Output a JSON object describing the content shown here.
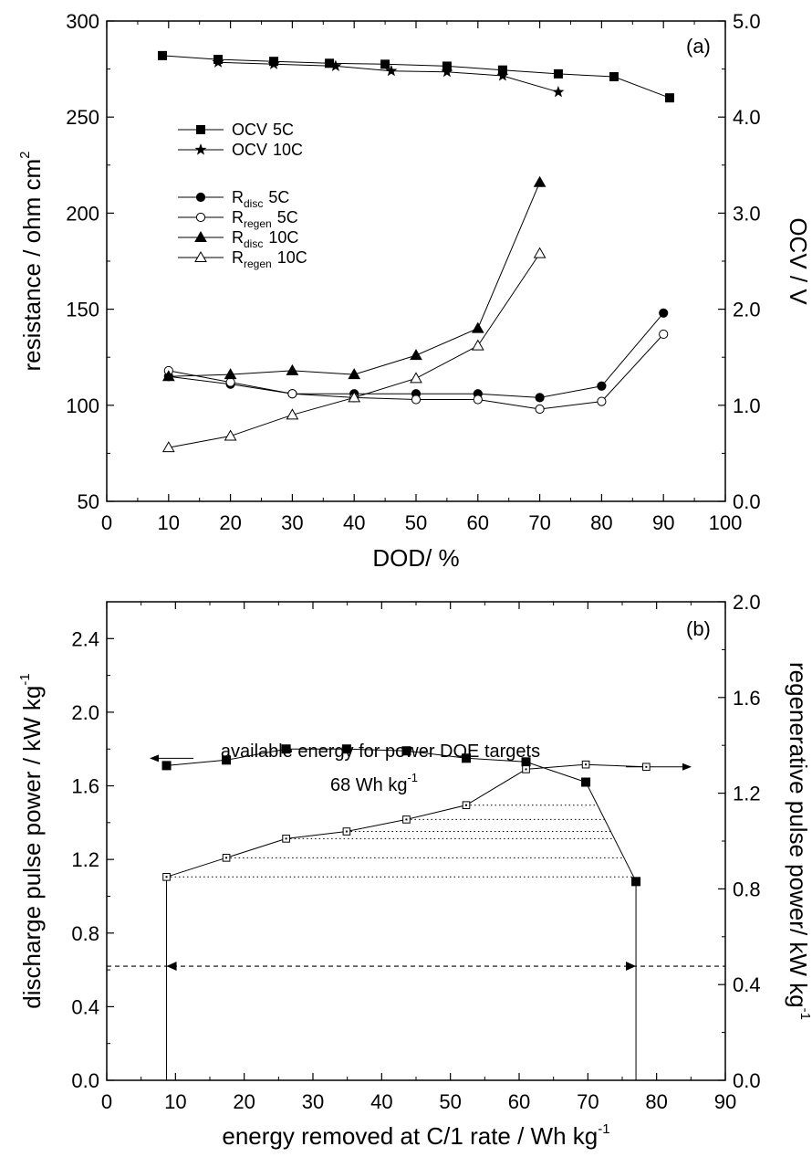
{
  "chart_data": [
    {
      "panel_label": "(a)",
      "type": "line",
      "xlabel": "DOD/ %",
      "ylabel": "resistance / ohm cm",
      "ylabel_sup": "2",
      "y2label": "OCV / V",
      "xlim": [
        0,
        100
      ],
      "ylim": [
        50,
        300
      ],
      "y2lim": [
        0.0,
        5.0
      ],
      "xticks": [
        "0",
        "10",
        "20",
        "30",
        "40",
        "50",
        "60",
        "70",
        "80",
        "90",
        "100"
      ],
      "yticks": [
        "50",
        "100",
        "150",
        "200",
        "250",
        "300"
      ],
      "y2ticks": [
        "0.0",
        "1.0",
        "2.0",
        "3.0",
        "4.0",
        "5.0"
      ],
      "series": [
        {
          "name": "OCV 5C",
          "legend_main": "OCV",
          "legend_sub": "",
          "legend_tail": "5C",
          "axis": "right",
          "marker": "square-filled",
          "x": [
            9,
            18,
            27,
            36,
            45,
            55,
            64,
            73,
            82,
            91
          ],
          "y": [
            4.64,
            4.6,
            4.58,
            4.56,
            4.55,
            4.53,
            4.49,
            4.45,
            4.42,
            4.2
          ]
        },
        {
          "name": "OCV 10C",
          "legend_main": "OCV",
          "legend_sub": "",
          "legend_tail": "10C",
          "axis": "right",
          "marker": "star-filled",
          "x": [
            18,
            27,
            37,
            46,
            55,
            64,
            73
          ],
          "y": [
            4.57,
            4.55,
            4.53,
            4.48,
            4.47,
            4.43,
            4.26
          ]
        },
        {
          "name": "Rdisc 5C",
          "legend_main": "R",
          "legend_sub": "disc",
          "legend_tail": "5C",
          "axis": "left",
          "marker": "circle-filled",
          "x": [
            10,
            20,
            30,
            40,
            50,
            60,
            70,
            80,
            90
          ],
          "y": [
            115,
            111,
            106,
            106,
            106,
            106,
            104,
            110,
            148
          ]
        },
        {
          "name": "Rregen 5C",
          "legend_main": "R",
          "legend_sub": "regen",
          "legend_tail": "5C",
          "axis": "left",
          "marker": "circle-open",
          "x": [
            10,
            20,
            30,
            40,
            50,
            60,
            70,
            80,
            90
          ],
          "y": [
            118,
            112,
            106,
            104,
            103,
            103,
            98,
            102,
            137
          ]
        },
        {
          "name": "Rdisc 10C",
          "legend_main": "R",
          "legend_sub": "disc",
          "legend_tail": "10C",
          "axis": "left",
          "marker": "triangle-filled",
          "x": [
            10,
            20,
            30,
            40,
            50,
            60,
            70
          ],
          "y": [
            115,
            116,
            118,
            116,
            126,
            140,
            216
          ]
        },
        {
          "name": "Rregen 10C",
          "legend_main": "R",
          "legend_sub": "regen",
          "legend_tail": "10C",
          "axis": "left",
          "marker": "triangle-open",
          "x": [
            10,
            20,
            30,
            40,
            50,
            60,
            70
          ],
          "y": [
            78,
            84,
            95,
            104,
            114,
            131,
            179
          ]
        }
      ]
    },
    {
      "panel_label": "(b)",
      "type": "line",
      "xlabel": "energy removed at C/1 rate / Wh kg",
      "xlabel_sup": "-1",
      "ylabel": "discharge pulse power / kW kg",
      "ylabel_sup": "-1",
      "y2label": "regenerative pulse power/ kW kg",
      "y2label_sup": "-1",
      "xlim": [
        0,
        90
      ],
      "ylim": [
        0.0,
        2.6
      ],
      "y2lim": [
        0.0,
        2.0
      ],
      "xticks": [
        "0",
        "10",
        "20",
        "30",
        "40",
        "50",
        "60",
        "70",
        "80",
        "90"
      ],
      "yticks": [
        "0.0",
        "0.4",
        "0.8",
        "1.2",
        "1.6",
        "2.0",
        "2.4"
      ],
      "y2ticks": [
        "0.0",
        "0.4",
        "0.8",
        "1.2",
        "1.6",
        "2.0"
      ],
      "series": [
        {
          "name": "discharge pulse power",
          "axis": "left",
          "marker": "square-filled",
          "x": [
            8.7,
            17.4,
            26.1,
            34.9,
            43.6,
            52.3,
            61.0,
            69.7,
            77.0
          ],
          "y": [
            1.71,
            1.74,
            1.8,
            1.8,
            1.79,
            1.75,
            1.73,
            1.62,
            1.08
          ]
        },
        {
          "name": "regenerative pulse power",
          "axis": "right",
          "marker": "square-open",
          "x": [
            8.7,
            17.4,
            26.1,
            34.9,
            43.6,
            52.3,
            61.0,
            69.7,
            78.5
          ],
          "y": [
            0.85,
            0.93,
            1.01,
            1.04,
            1.09,
            1.15,
            1.3,
            1.32,
            1.31
          ]
        }
      ],
      "annotation": {
        "text_line1": "available energy for power DOE targets",
        "text_line2": "68 Wh kg",
        "text_line2_sup": "-1",
        "target_power": 0.62,
        "x_start": 8.7,
        "x_end": 77.0
      }
    }
  ]
}
